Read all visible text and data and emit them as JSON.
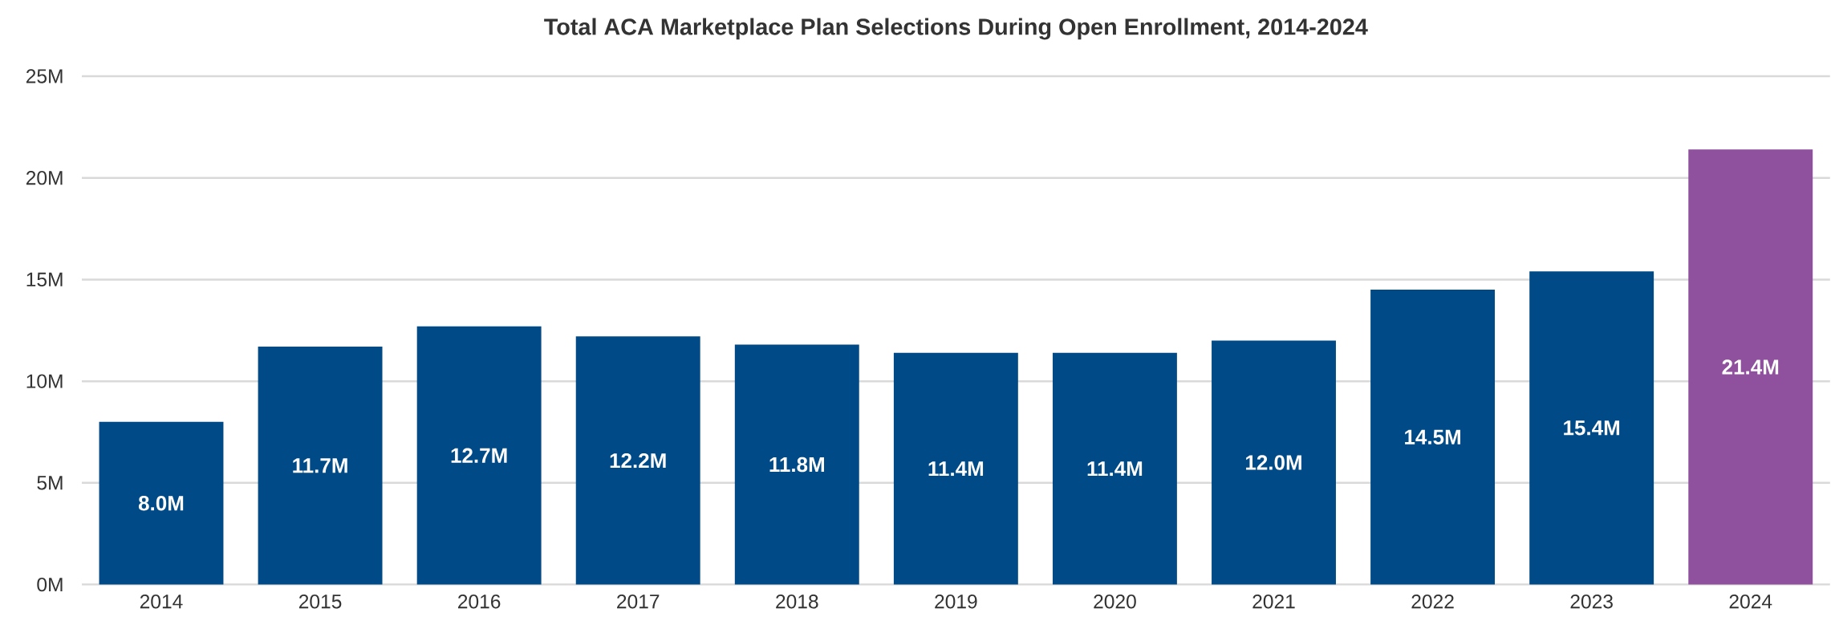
{
  "chart_data": {
    "type": "bar",
    "title": "Total ACA Marketplace Plan Selections During Open Enrollment, 2014-2024",
    "categories": [
      "2014",
      "2015",
      "2016",
      "2017",
      "2018",
      "2019",
      "2020",
      "2021",
      "2022",
      "2023",
      "2024"
    ],
    "values": [
      8.0,
      11.7,
      12.7,
      12.2,
      11.8,
      11.4,
      11.4,
      12.0,
      14.5,
      15.4,
      21.4
    ],
    "value_labels": [
      "8.0M",
      "11.7M",
      "12.7M",
      "12.2M",
      "11.8M",
      "11.4M",
      "11.4M",
      "12.0M",
      "14.5M",
      "15.4M",
      "21.4M"
    ],
    "colors": [
      "#004b87",
      "#004b87",
      "#004b87",
      "#004b87",
      "#004b87",
      "#004b87",
      "#004b87",
      "#004b87",
      "#004b87",
      "#004b87",
      "#8f509d"
    ],
    "ylim": [
      0,
      25
    ],
    "yticks": [
      {
        "value": 0,
        "label": "0M"
      },
      {
        "value": 5,
        "label": "5M"
      },
      {
        "value": 10,
        "label": "10M"
      },
      {
        "value": 15,
        "label": "15M"
      },
      {
        "value": 20,
        "label": "20M"
      },
      {
        "value": 25,
        "label": "25M"
      }
    ],
    "grid": "y"
  }
}
